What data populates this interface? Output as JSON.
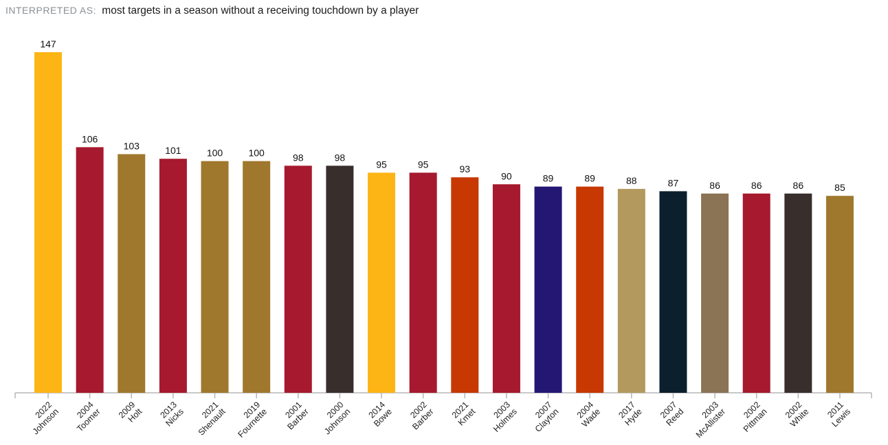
{
  "header": {
    "prefix": "INTERPRETED AS:",
    "query": "most targets in a season without a receiving touchdown by a player"
  },
  "chart_data": {
    "type": "bar",
    "title": "",
    "xlabel": "",
    "ylabel": "",
    "ylim": [
      0,
      147
    ],
    "grid": false,
    "categories": [
      {
        "year": "2022",
        "name": "Johnson"
      },
      {
        "year": "2004",
        "name": "Toomer"
      },
      {
        "year": "2009",
        "name": "Holt"
      },
      {
        "year": "2013",
        "name": "Nicks"
      },
      {
        "year": "2021",
        "name": "Shenault"
      },
      {
        "year": "2019",
        "name": "Fournette"
      },
      {
        "year": "2001",
        "name": "Barber"
      },
      {
        "year": "2000",
        "name": "Johnson"
      },
      {
        "year": "2014",
        "name": "Bowe"
      },
      {
        "year": "2002",
        "name": "Barber"
      },
      {
        "year": "2021",
        "name": "Kmet"
      },
      {
        "year": "2003",
        "name": "Holmes"
      },
      {
        "year": "2007",
        "name": "Clayton"
      },
      {
        "year": "2004",
        "name": "Wade"
      },
      {
        "year": "2017",
        "name": "Hyde"
      },
      {
        "year": "2007",
        "name": "Reed"
      },
      {
        "year": "2003",
        "name": "McAllister"
      },
      {
        "year": "2002",
        "name": "Pittman"
      },
      {
        "year": "2002",
        "name": "White"
      },
      {
        "year": "2011",
        "name": "Lewis"
      }
    ],
    "values": [
      147,
      106,
      103,
      101,
      100,
      100,
      98,
      98,
      95,
      95,
      93,
      90,
      89,
      89,
      88,
      87,
      86,
      86,
      86,
      85
    ],
    "colors": [
      "#FDB515",
      "#A6192E",
      "#A0782D",
      "#A6192E",
      "#A0782D",
      "#A0782D",
      "#A6192E",
      "#382F2D",
      "#FDB515",
      "#A6192E",
      "#C83803",
      "#A6192E",
      "#241773",
      "#C83803",
      "#B3995D",
      "#0C1F2C",
      "#8B7355",
      "#A6192E",
      "#382F2D",
      "#A0782D"
    ]
  }
}
